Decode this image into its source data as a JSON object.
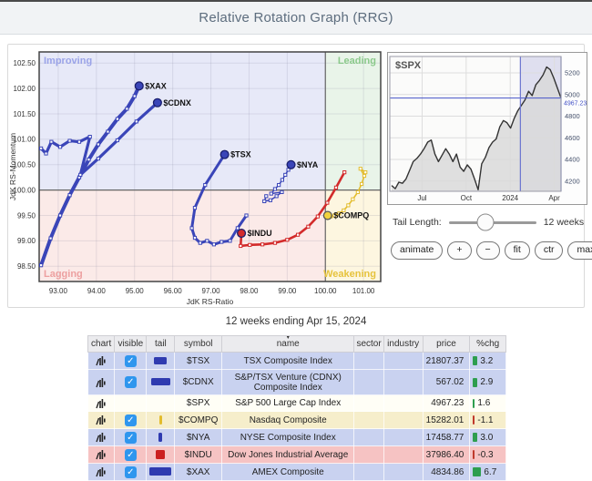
{
  "title": "Relative Rotation Graph (RRG)",
  "accent_colors": {
    "blue": "#3a45b8",
    "red": "#d32b2b",
    "yellow": "#e3bc2c",
    "yellow_dot": "#f0d23e",
    "up_green": "#2e9e4f",
    "down_red": "#c0392b",
    "checkbox_blue": "#2f96ee",
    "spx_line_blue": "#4553c8"
  },
  "controls": {
    "tail_length_label": "Tail Length:",
    "tail_length_value": "12 weeks",
    "buttons": [
      {
        "id": "animate",
        "label": "animate"
      },
      {
        "id": "zoom-in",
        "label": "+"
      },
      {
        "id": "zoom-out",
        "label": "−"
      },
      {
        "id": "fit",
        "label": "fit"
      },
      {
        "id": "ctr",
        "label": "ctr"
      },
      {
        "id": "max",
        "label": "max"
      }
    ]
  },
  "summary_line": "12 weeks ending Apr 15, 2024",
  "chart_data": [
    {
      "type": "scatter",
      "name": "rrg",
      "xlabel": "JdK RS-Ratio",
      "ylabel": "JdK RS-Momentum",
      "xlim": [
        92.5,
        101.45
      ],
      "ylim": [
        98.2,
        102.72
      ],
      "x_ticks": [
        93.0,
        94.0,
        95.0,
        96.0,
        97.0,
        98.0,
        99.0,
        100.0,
        101.0
      ],
      "y_ticks": [
        102.5,
        102.0,
        101.5,
        101.0,
        100.5,
        100.0,
        99.5,
        99.0,
        98.5
      ],
      "center": [
        100.0,
        100.0
      ],
      "grid": true,
      "quadrants": [
        {
          "label": "Improving",
          "pos": "top-left",
          "bg": "#e7e9f8",
          "label_color": "#9aa3e8"
        },
        {
          "label": "Leading",
          "pos": "top-right",
          "bg": "#e9f4e9",
          "label_color": "#8bc98b"
        },
        {
          "label": "Lagging",
          "pos": "bottom-left",
          "bg": "#fbeae8",
          "label_color": "#eda0a0"
        },
        {
          "label": "Weakening",
          "pos": "bottom-right",
          "bg": "#fdf6e0",
          "label_color": "#e6c33c"
        }
      ],
      "series": [
        {
          "name": "$XAX",
          "color": "#3a45b8",
          "width": 4,
          "points": [
            [
              92.55,
              98.52
            ],
            [
              92.8,
              99.05
            ],
            [
              93.05,
              99.5
            ],
            [
              93.3,
              99.9
            ],
            [
              93.55,
              100.25
            ],
            [
              93.8,
              100.6
            ],
            [
              94.05,
              100.9
            ],
            [
              94.3,
              101.15
            ],
            [
              94.55,
              101.4
            ],
            [
              94.8,
              101.6
            ],
            [
              95.0,
              101.85
            ],
            [
              95.12,
              102.05
            ]
          ]
        },
        {
          "name": "$CDNX",
          "color": "#3a45b8",
          "width": 3.2,
          "points": [
            [
              92.55,
              100.82
            ],
            [
              92.68,
              100.72
            ],
            [
              92.82,
              100.95
            ],
            [
              93.05,
              100.85
            ],
            [
              93.3,
              100.97
            ],
            [
              93.55,
              100.95
            ],
            [
              93.83,
              101.05
            ],
            [
              93.58,
              100.3
            ],
            [
              94.05,
              100.62
            ],
            [
              94.55,
              100.98
            ],
            [
              95.05,
              101.35
            ],
            [
              95.6,
              101.72
            ]
          ]
        },
        {
          "name": "$TSX",
          "color": "#3a45b8",
          "width": 3,
          "points": [
            [
              97.93,
              99.5
            ],
            [
              97.7,
              99.25
            ],
            [
              97.5,
              99.0
            ],
            [
              97.28,
              98.98
            ],
            [
              97.08,
              98.93
            ],
            [
              96.9,
              99.0
            ],
            [
              96.72,
              98.96
            ],
            [
              96.58,
              99.06
            ],
            [
              96.5,
              99.25
            ],
            [
              96.58,
              99.65
            ],
            [
              96.85,
              100.1
            ],
            [
              97.36,
              100.7
            ]
          ]
        },
        {
          "name": "$NYA",
          "color": "#3a45b8",
          "width": 1.5,
          "points": [
            [
              98.45,
              99.88
            ],
            [
              98.4,
              99.78
            ],
            [
              98.56,
              99.8
            ],
            [
              98.72,
              99.88
            ],
            [
              98.86,
              99.96
            ],
            [
              98.58,
              99.93
            ],
            [
              98.68,
              100.02
            ],
            [
              98.78,
              100.1
            ],
            [
              98.87,
              100.2
            ],
            [
              98.95,
              100.3
            ],
            [
              99.03,
              100.4
            ],
            [
              99.1,
              100.5
            ]
          ]
        },
        {
          "name": "$INDU",
          "color": "#d32b2b",
          "width": 2.6,
          "points": [
            [
              100.5,
              100.35
            ],
            [
              100.28,
              100.05
            ],
            [
              100.05,
              99.75
            ],
            [
              99.8,
              99.48
            ],
            [
              99.55,
              99.28
            ],
            [
              99.28,
              99.12
            ],
            [
              99.0,
              99.02
            ],
            [
              98.68,
              98.96
            ],
            [
              98.35,
              98.93
            ],
            [
              98.02,
              98.92
            ],
            [
              97.78,
              98.9
            ],
            [
              97.8,
              99.15
            ]
          ]
        },
        {
          "name": "$COMPQ",
          "color": "#e3bc2c",
          "width": 1.6,
          "dot_fill": "#f0d23e",
          "dot_stroke": "#555",
          "points": [
            [
              101.02,
              100.28
            ],
            [
              100.92,
              100.42
            ],
            [
              101.05,
              100.35
            ],
            [
              100.95,
              100.12
            ],
            [
              100.85,
              99.96
            ],
            [
              100.72,
              99.82
            ],
            [
              100.6,
              99.7
            ],
            [
              100.48,
              99.6
            ],
            [
              100.36,
              99.54
            ],
            [
              100.24,
              99.5
            ],
            [
              100.14,
              99.48
            ],
            [
              100.06,
              99.5
            ]
          ]
        }
      ]
    },
    {
      "type": "area",
      "name": "spx_mini",
      "title": "$SPX",
      "last_price_label": "4967.23",
      "last_price": 4967.23,
      "ylim": [
        4100,
        5300
      ],
      "y_ticks": [
        5200,
        5000,
        4800,
        4600,
        4400,
        4200
      ],
      "x_ticks": [
        {
          "label": "Jul",
          "t": 0.18
        },
        {
          "label": "Oct",
          "t": 0.44
        },
        {
          "label": "2024",
          "t": 0.7
        },
        {
          "label": "Apr",
          "t": 0.96
        }
      ],
      "highlight_band_t": [
        0.76,
        1.0
      ],
      "values": [
        4160,
        4130,
        4190,
        4180,
        4220,
        4300,
        4380,
        4410,
        4450,
        4500,
        4560,
        4580,
        4450,
        4380,
        4440,
        4500,
        4450,
        4380,
        4450,
        4330,
        4290,
        4350,
        4310,
        4220,
        4120,
        4360,
        4420,
        4510,
        4560,
        4590,
        4700,
        4760,
        4740,
        4690,
        4780,
        4850,
        4900,
        4950,
        5030,
        4990,
        5090,
        5130,
        5180,
        5255,
        5230,
        5150,
        5060,
        4967
      ]
    }
  ],
  "table": {
    "headers": [
      "chart",
      "visible",
      "tail",
      "symbol",
      "name",
      "sector",
      "industry",
      "price",
      "%chg"
    ],
    "sorted_column": "name",
    "rows": [
      {
        "symbol": "$TSX",
        "name": "TSX Composite Index",
        "sector": "",
        "industry": "",
        "price": "21807.37",
        "chg": "3.2",
        "chg_dir": "up",
        "chg_w": 5,
        "row_color": "blue",
        "visible": true,
        "tail": {
          "color": "#2f3bb0",
          "w": 14,
          "h": 8
        }
      },
      {
        "symbol": "$CDNX",
        "name": "S&P/TSX Venture (CDNX) Composite Index",
        "sector": "",
        "industry": "",
        "price": "567.02",
        "chg": "2.9",
        "chg_dir": "up",
        "chg_w": 5,
        "row_color": "blue",
        "visible": true,
        "tail": {
          "color": "#2f3bb0",
          "w": 21,
          "h": 8
        }
      },
      {
        "symbol": "$SPX",
        "name": "S&P 500 Large Cap Index",
        "sector": "",
        "industry": "",
        "price": "4967.23",
        "chg": "1.6",
        "chg_dir": "up",
        "chg_w": 2,
        "row_color": "white",
        "visible": false,
        "tail": null
      },
      {
        "symbol": "$COMPQ",
        "name": "Nasdaq Composite",
        "sector": "",
        "industry": "",
        "price": "15282.01",
        "chg": "-1.1",
        "chg_dir": "down",
        "chg_w": 2,
        "row_color": "yellow",
        "visible": true,
        "tail": {
          "color": "#e3bc2c",
          "w": 3,
          "h": 10
        }
      },
      {
        "symbol": "$NYA",
        "name": "NYSE Composite Index",
        "sector": "",
        "industry": "",
        "price": "17458.77",
        "chg": "3.0",
        "chg_dir": "up",
        "chg_w": 5,
        "row_color": "blue",
        "visible": true,
        "tail": {
          "color": "#2f3bb0",
          "w": 4,
          "h": 10
        }
      },
      {
        "symbol": "$INDU",
        "name": "Dow Jones Industrial Average",
        "sector": "",
        "industry": "",
        "price": "37986.40",
        "chg": "-0.3",
        "chg_dir": "down",
        "chg_w": 2,
        "row_color": "pink",
        "visible": true,
        "tail": {
          "color": "#cc1f1f",
          "w": 10,
          "h": 10
        }
      },
      {
        "symbol": "$XAX",
        "name": "AMEX Composite",
        "sector": "",
        "industry": "",
        "price": "4834.86",
        "chg": "6.7",
        "chg_dir": "up",
        "chg_w": 9,
        "row_color": "blue",
        "visible": true,
        "tail": {
          "color": "#2f3bb0",
          "w": 24,
          "h": 9
        }
      }
    ]
  }
}
